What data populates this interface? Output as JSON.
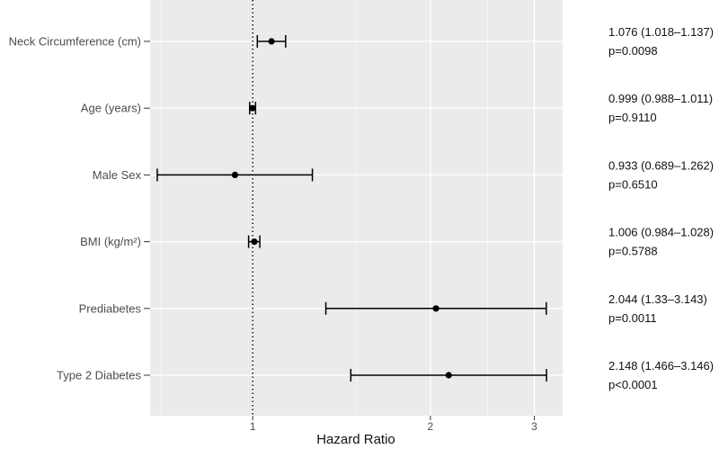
{
  "chart_data": {
    "type": "forest",
    "xlabel": "Hazard Ratio",
    "x_scale": "log",
    "xlim": [
      0.67,
      3.35
    ],
    "x_ticks": [
      1,
      2,
      3
    ],
    "x_minor_ticks": [
      0.7,
      1.5,
      2.5
    ],
    "reference_line": 1,
    "grid": true,
    "rows": [
      {
        "label": "Neck Circumference (cm)",
        "hr": 1.076,
        "lo": 1.018,
        "hi": 1.137,
        "ci_text": "1.076 (1.018–1.137)",
        "p_text": "p=0.0098"
      },
      {
        "label": "Age (years)",
        "hr": 0.999,
        "lo": 0.988,
        "hi": 1.011,
        "ci_text": "0.999 (0.988–1.011)",
        "p_text": "p=0.9110"
      },
      {
        "label": "Male Sex",
        "hr": 0.933,
        "lo": 0.689,
        "hi": 1.262,
        "ci_text": "0.933 (0.689–1.262)",
        "p_text": "p=0.6510"
      },
      {
        "label": "BMI (kg/m²)",
        "hr": 1.006,
        "lo": 0.984,
        "hi": 1.028,
        "ci_text": "1.006 (0.984–1.028)",
        "p_text": "p=0.5788"
      },
      {
        "label": "Prediabetes",
        "hr": 2.044,
        "lo": 1.33,
        "hi": 3.143,
        "ci_text": "2.044 (1.33–3.143)",
        "p_text": "p=0.0011"
      },
      {
        "label": "Type 2 Diabetes",
        "hr": 2.148,
        "lo": 1.466,
        "hi": 3.146,
        "ci_text": "2.148 (1.466–3.146)",
        "p_text": "p<0.0001"
      }
    ],
    "colors": {
      "panel": "#ebebeb",
      "grid": "#ffffff",
      "ink": "#000000",
      "text": "#4d4d4d"
    }
  }
}
